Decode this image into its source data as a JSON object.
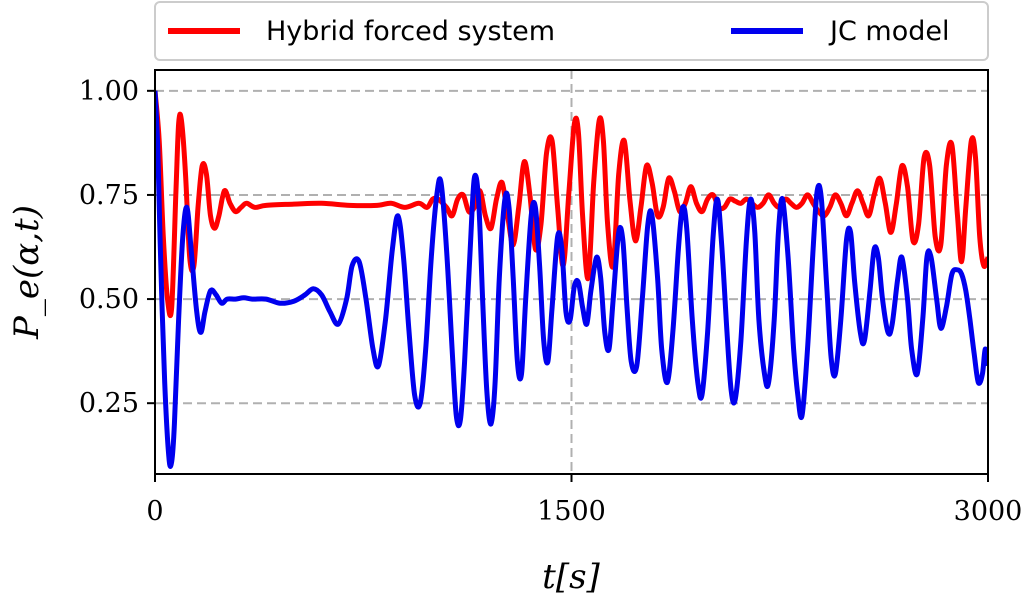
{
  "chart_data": {
    "type": "line",
    "xlabel": "t[s]",
    "ylabel": "P_e(α,t)",
    "xlim": [
      0,
      3000
    ],
    "ylim": [
      0.08,
      1.05
    ],
    "x_ticks": [
      0,
      1500,
      3000
    ],
    "x_tick_labels": [
      "0",
      "1500",
      "3000"
    ],
    "y_ticks": [
      0.25,
      0.5,
      0.75,
      1.0
    ],
    "y_tick_labels": [
      "0.25",
      "0.50",
      "0.75",
      "1.00"
    ],
    "grid": "dashed horizontal at y ticks, dashed vertical at x=1500",
    "legend": {
      "placement": "top, above plot",
      "columns": 2
    },
    "series": [
      {
        "name": "Hybrid forced system",
        "color": "#ff0000",
        "points": [
          [
            0,
            1.0
          ],
          [
            15,
            0.88
          ],
          [
            30,
            0.65
          ],
          [
            45,
            0.5
          ],
          [
            60,
            0.48
          ],
          [
            75,
            0.75
          ],
          [
            85,
            0.92
          ],
          [
            95,
            0.93
          ],
          [
            110,
            0.8
          ],
          [
            125,
            0.6
          ],
          [
            140,
            0.58
          ],
          [
            155,
            0.72
          ],
          [
            170,
            0.82
          ],
          [
            185,
            0.8
          ],
          [
            200,
            0.7
          ],
          [
            215,
            0.67
          ],
          [
            230,
            0.7
          ],
          [
            250,
            0.76
          ],
          [
            270,
            0.73
          ],
          [
            290,
            0.71
          ],
          [
            310,
            0.72
          ],
          [
            330,
            0.73
          ],
          [
            360,
            0.72
          ],
          [
            400,
            0.725
          ],
          [
            500,
            0.728
          ],
          [
            600,
            0.73
          ],
          [
            700,
            0.725
          ],
          [
            800,
            0.725
          ],
          [
            850,
            0.73
          ],
          [
            900,
            0.72
          ],
          [
            950,
            0.73
          ],
          [
            980,
            0.72
          ],
          [
            1000,
            0.74
          ],
          [
            1020,
            0.74
          ],
          [
            1050,
            0.72
          ],
          [
            1070,
            0.7
          ],
          [
            1090,
            0.74
          ],
          [
            1110,
            0.75
          ],
          [
            1130,
            0.71
          ],
          [
            1150,
            0.72
          ],
          [
            1170,
            0.76
          ],
          [
            1190,
            0.7
          ],
          [
            1210,
            0.67
          ],
          [
            1230,
            0.74
          ],
          [
            1250,
            0.78
          ],
          [
            1270,
            0.7
          ],
          [
            1290,
            0.63
          ],
          [
            1310,
            0.72
          ],
          [
            1330,
            0.83
          ],
          [
            1350,
            0.75
          ],
          [
            1370,
            0.62
          ],
          [
            1390,
            0.68
          ],
          [
            1410,
            0.85
          ],
          [
            1430,
            0.88
          ],
          [
            1450,
            0.72
          ],
          [
            1470,
            0.58
          ],
          [
            1490,
            0.75
          ],
          [
            1510,
            0.92
          ],
          [
            1525,
            0.9
          ],
          [
            1540,
            0.7
          ],
          [
            1560,
            0.55
          ],
          [
            1580,
            0.78
          ],
          [
            1600,
            0.93
          ],
          [
            1615,
            0.88
          ],
          [
            1630,
            0.68
          ],
          [
            1650,
            0.58
          ],
          [
            1670,
            0.8
          ],
          [
            1690,
            0.88
          ],
          [
            1710,
            0.74
          ],
          [
            1730,
            0.64
          ],
          [
            1750,
            0.72
          ],
          [
            1770,
            0.82
          ],
          [
            1790,
            0.78
          ],
          [
            1810,
            0.7
          ],
          [
            1830,
            0.72
          ],
          [
            1850,
            0.79
          ],
          [
            1870,
            0.76
          ],
          [
            1890,
            0.71
          ],
          [
            1910,
            0.73
          ],
          [
            1930,
            0.77
          ],
          [
            1950,
            0.73
          ],
          [
            1970,
            0.71
          ],
          [
            1990,
            0.74
          ],
          [
            2010,
            0.75
          ],
          [
            2030,
            0.72
          ],
          [
            2050,
            0.72
          ],
          [
            2070,
            0.74
          ],
          [
            2090,
            0.735
          ],
          [
            2110,
            0.73
          ],
          [
            2130,
            0.74
          ],
          [
            2150,
            0.73
          ],
          [
            2170,
            0.72
          ],
          [
            2190,
            0.73
          ],
          [
            2210,
            0.75
          ],
          [
            2230,
            0.73
          ],
          [
            2250,
            0.72
          ],
          [
            2270,
            0.74
          ],
          [
            2290,
            0.73
          ],
          [
            2310,
            0.72
          ],
          [
            2330,
            0.73
          ],
          [
            2350,
            0.75
          ],
          [
            2370,
            0.73
          ],
          [
            2390,
            0.71
          ],
          [
            2410,
            0.7
          ],
          [
            2430,
            0.72
          ],
          [
            2450,
            0.75
          ],
          [
            2470,
            0.73
          ],
          [
            2490,
            0.7
          ],
          [
            2510,
            0.73
          ],
          [
            2530,
            0.76
          ],
          [
            2550,
            0.73
          ],
          [
            2570,
            0.7
          ],
          [
            2590,
            0.75
          ],
          [
            2610,
            0.79
          ],
          [
            2630,
            0.73
          ],
          [
            2650,
            0.66
          ],
          [
            2670,
            0.73
          ],
          [
            2690,
            0.82
          ],
          [
            2710,
            0.77
          ],
          [
            2730,
            0.64
          ],
          [
            2750,
            0.68
          ],
          [
            2770,
            0.84
          ],
          [
            2790,
            0.82
          ],
          [
            2810,
            0.65
          ],
          [
            2830,
            0.63
          ],
          [
            2850,
            0.82
          ],
          [
            2870,
            0.87
          ],
          [
            2890,
            0.7
          ],
          [
            2905,
            0.59
          ],
          [
            2920,
            0.72
          ],
          [
            2940,
            0.88
          ],
          [
            2955,
            0.84
          ],
          [
            2970,
            0.65
          ],
          [
            2985,
            0.58
          ],
          [
            3000,
            0.6
          ]
        ]
      },
      {
        "name": "JC model",
        "color": "#0000ee",
        "points": [
          [
            0,
            1.0
          ],
          [
            10,
            0.86
          ],
          [
            20,
            0.6
          ],
          [
            35,
            0.3
          ],
          [
            50,
            0.12
          ],
          [
            60,
            0.11
          ],
          [
            70,
            0.2
          ],
          [
            85,
            0.45
          ],
          [
            100,
            0.65
          ],
          [
            115,
            0.72
          ],
          [
            130,
            0.62
          ],
          [
            150,
            0.47
          ],
          [
            165,
            0.42
          ],
          [
            180,
            0.47
          ],
          [
            200,
            0.52
          ],
          [
            220,
            0.51
          ],
          [
            240,
            0.49
          ],
          [
            260,
            0.5
          ],
          [
            290,
            0.5
          ],
          [
            320,
            0.503
          ],
          [
            350,
            0.5
          ],
          [
            400,
            0.5
          ],
          [
            450,
            0.49
          ],
          [
            500,
            0.495
          ],
          [
            540,
            0.51
          ],
          [
            570,
            0.525
          ],
          [
            600,
            0.51
          ],
          [
            630,
            0.47
          ],
          [
            660,
            0.44
          ],
          [
            690,
            0.5
          ],
          [
            710,
            0.58
          ],
          [
            735,
            0.59
          ],
          [
            760,
            0.5
          ],
          [
            785,
            0.38
          ],
          [
            805,
            0.34
          ],
          [
            830,
            0.45
          ],
          [
            855,
            0.62
          ],
          [
            875,
            0.7
          ],
          [
            895,
            0.6
          ],
          [
            915,
            0.42
          ],
          [
            935,
            0.27
          ],
          [
            955,
            0.25
          ],
          [
            975,
            0.38
          ],
          [
            995,
            0.6
          ],
          [
            1015,
            0.75
          ],
          [
            1030,
            0.78
          ],
          [
            1050,
            0.62
          ],
          [
            1070,
            0.38
          ],
          [
            1085,
            0.22
          ],
          [
            1100,
            0.21
          ],
          [
            1115,
            0.35
          ],
          [
            1135,
            0.62
          ],
          [
            1150,
            0.79
          ],
          [
            1165,
            0.74
          ],
          [
            1180,
            0.5
          ],
          [
            1195,
            0.28
          ],
          [
            1210,
            0.2
          ],
          [
            1225,
            0.3
          ],
          [
            1240,
            0.55
          ],
          [
            1260,
            0.74
          ],
          [
            1275,
            0.72
          ],
          [
            1290,
            0.55
          ],
          [
            1305,
            0.35
          ],
          [
            1320,
            0.32
          ],
          [
            1335,
            0.5
          ],
          [
            1355,
            0.7
          ],
          [
            1370,
            0.72
          ],
          [
            1385,
            0.58
          ],
          [
            1400,
            0.4
          ],
          [
            1415,
            0.35
          ],
          [
            1430,
            0.48
          ],
          [
            1450,
            0.65
          ],
          [
            1465,
            0.62
          ],
          [
            1480,
            0.47
          ],
          [
            1495,
            0.45
          ],
          [
            1510,
            0.53
          ],
          [
            1525,
            0.54
          ],
          [
            1540,
            0.48
          ],
          [
            1555,
            0.44
          ],
          [
            1570,
            0.52
          ],
          [
            1590,
            0.6
          ],
          [
            1605,
            0.55
          ],
          [
            1620,
            0.42
          ],
          [
            1635,
            0.38
          ],
          [
            1650,
            0.5
          ],
          [
            1670,
            0.66
          ],
          [
            1685,
            0.64
          ],
          [
            1700,
            0.48
          ],
          [
            1715,
            0.35
          ],
          [
            1735,
            0.34
          ],
          [
            1755,
            0.5
          ],
          [
            1775,
            0.68
          ],
          [
            1790,
            0.7
          ],
          [
            1810,
            0.55
          ],
          [
            1825,
            0.38
          ],
          [
            1845,
            0.3
          ],
          [
            1865,
            0.42
          ],
          [
            1885,
            0.62
          ],
          [
            1900,
            0.72
          ],
          [
            1915,
            0.67
          ],
          [
            1935,
            0.45
          ],
          [
            1955,
            0.3
          ],
          [
            1970,
            0.27
          ],
          [
            1990,
            0.42
          ],
          [
            2010,
            0.65
          ],
          [
            2025,
            0.74
          ],
          [
            2040,
            0.64
          ],
          [
            2060,
            0.42
          ],
          [
            2075,
            0.28
          ],
          [
            2090,
            0.26
          ],
          [
            2110,
            0.4
          ],
          [
            2130,
            0.64
          ],
          [
            2145,
            0.74
          ],
          [
            2160,
            0.66
          ],
          [
            2175,
            0.45
          ],
          [
            2195,
            0.32
          ],
          [
            2210,
            0.3
          ],
          [
            2230,
            0.45
          ],
          [
            2245,
            0.66
          ],
          [
            2260,
            0.74
          ],
          [
            2280,
            0.6
          ],
          [
            2300,
            0.38
          ],
          [
            2315,
            0.27
          ],
          [
            2330,
            0.22
          ],
          [
            2350,
            0.38
          ],
          [
            2370,
            0.62
          ],
          [
            2385,
            0.76
          ],
          [
            2400,
            0.74
          ],
          [
            2420,
            0.52
          ],
          [
            2435,
            0.36
          ],
          [
            2450,
            0.32
          ],
          [
            2470,
            0.45
          ],
          [
            2490,
            0.64
          ],
          [
            2505,
            0.66
          ],
          [
            2520,
            0.54
          ],
          [
            2540,
            0.42
          ],
          [
            2555,
            0.4
          ],
          [
            2575,
            0.52
          ],
          [
            2590,
            0.62
          ],
          [
            2605,
            0.6
          ],
          [
            2620,
            0.5
          ],
          [
            2640,
            0.42
          ],
          [
            2655,
            0.44
          ],
          [
            2675,
            0.55
          ],
          [
            2690,
            0.6
          ],
          [
            2710,
            0.5
          ],
          [
            2725,
            0.38
          ],
          [
            2745,
            0.32
          ],
          [
            2765,
            0.45
          ],
          [
            2780,
            0.6
          ],
          [
            2795,
            0.6
          ],
          [
            2815,
            0.5
          ],
          [
            2830,
            0.43
          ],
          [
            2850,
            0.48
          ],
          [
            2870,
            0.56
          ],
          [
            2890,
            0.57
          ],
          [
            2905,
            0.56
          ],
          [
            2920,
            0.52
          ],
          [
            2935,
            0.45
          ],
          [
            2950,
            0.37
          ],
          [
            2965,
            0.3
          ],
          [
            2980,
            0.32
          ],
          [
            2990,
            0.38
          ],
          [
            3000,
            0.34
          ]
        ]
      }
    ]
  }
}
